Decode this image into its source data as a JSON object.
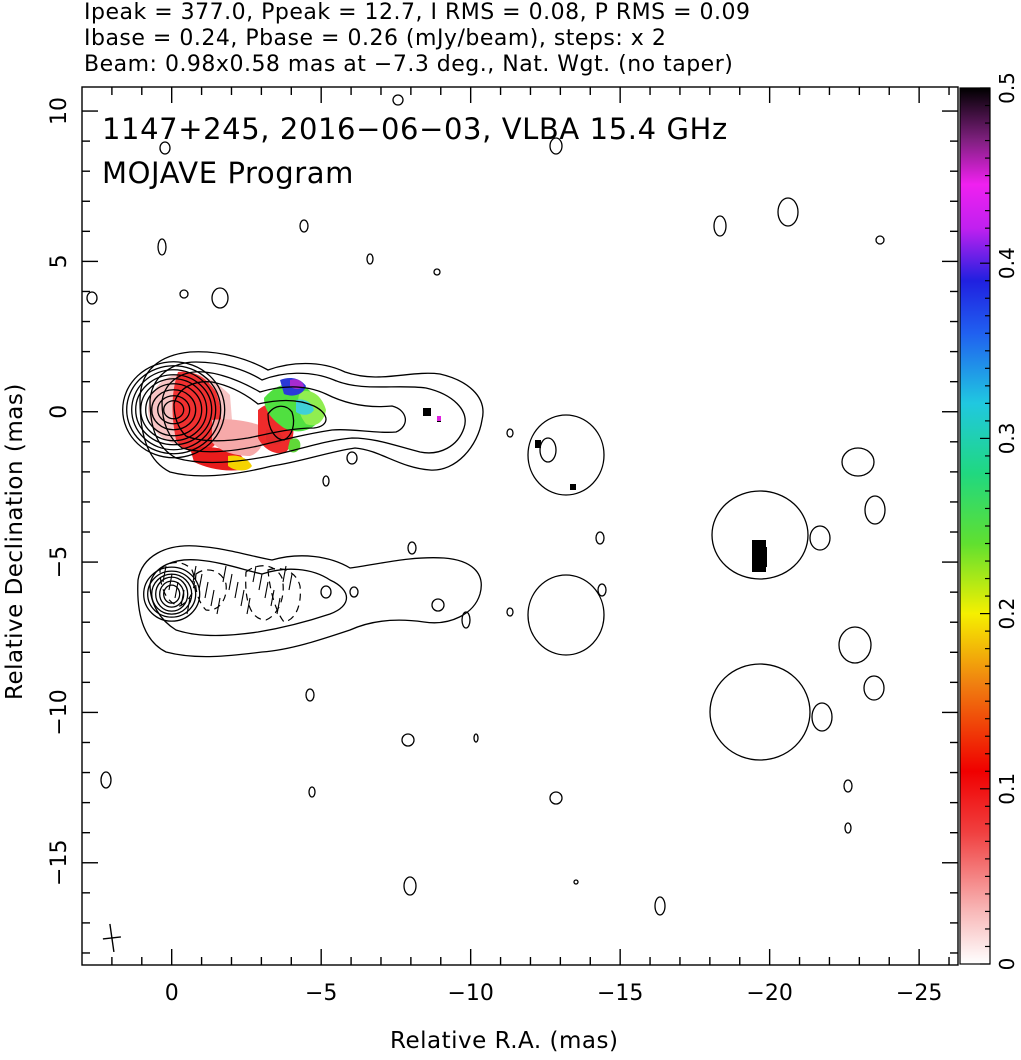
{
  "header": {
    "line1": "Ipeak = 377.0, Ppeak = 12.7, I RMS = 0.08, P RMS = 0.09",
    "line2": "Ibase = 0.24, Pbase = 0.26 (mJy/beam), steps: x 2",
    "line3": "Beam: 0.98x0.58 mas at −7.3 deg., Nat. Wgt. (no taper)"
  },
  "chart_data": {
    "type": "contour",
    "title": "1147+245, 2016−06−03, VLBA 15.4 GHz",
    "subtitle": "MOJAVE Program",
    "xlabel": "Relative R.A. (mas)",
    "ylabel": "Relative Declination (mas)",
    "xlim": [
      3,
      -26.3
    ],
    "ylim": [
      -18.4,
      10.8
    ],
    "xticks": [
      0,
      -5,
      -10,
      -15,
      -20,
      -25
    ],
    "xtick_labels": [
      "0",
      "−5",
      "−10",
      "−15",
      "−20",
      "−25"
    ],
    "yticks": [
      10,
      5,
      0,
      -5,
      -10,
      -15
    ],
    "ytick_labels": [
      "10",
      "5",
      "0",
      "−5",
      "−10",
      "−15"
    ],
    "colorbar": {
      "range": [
        0,
        0.5
      ],
      "ticks": [
        0,
        0.1,
        0.2,
        0.3,
        0.4,
        0.5
      ],
      "tick_labels": [
        "0",
        "0.1",
        "0.2",
        "0.3",
        "0.4",
        "0.5"
      ]
    },
    "contour_base_mJy_per_beam": {
      "total_intensity": 0.24,
      "polarized": 0.26
    },
    "contour_step_factor": 2,
    "upper_map_core": {
      "x": 0,
      "y": 0
    },
    "lower_map_core": {
      "x": 0,
      "y": -6
    },
    "beam": {
      "major_mas": 0.98,
      "minor_mas": 0.58,
      "pa_deg": -7.3,
      "marker_center": [
        2,
        -17.5
      ]
    }
  }
}
